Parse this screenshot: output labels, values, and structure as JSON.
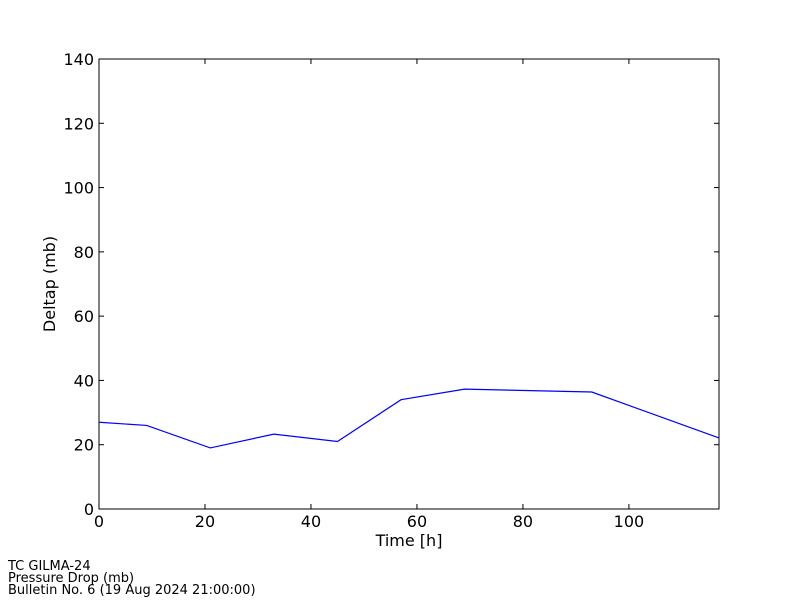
{
  "chart_data": {
    "type": "line",
    "x_label": "Time [h]",
    "y_label": "Deltap (mb)",
    "x": [
      0,
      9,
      21,
      33,
      45,
      57,
      69,
      93,
      117
    ],
    "series": [
      {
        "name": "Deltap",
        "color": "#0000ff",
        "values": [
          27,
          26,
          19,
          23.3,
          21,
          34,
          37.3,
          36.4,
          22.1
        ]
      }
    ],
    "xlim": [
      0,
      117
    ],
    "xticks": [
      0,
      20,
      40,
      60,
      80,
      100
    ],
    "ylim": [
      0,
      140
    ],
    "yticks": [
      0,
      20,
      40,
      60,
      80,
      100,
      120,
      140
    ],
    "footer": [
      "TC GILMA-24",
      "Pressure Drop (mb)",
      "Bulletin No. 6 (19 Aug 2024  21:00:00)"
    ]
  }
}
